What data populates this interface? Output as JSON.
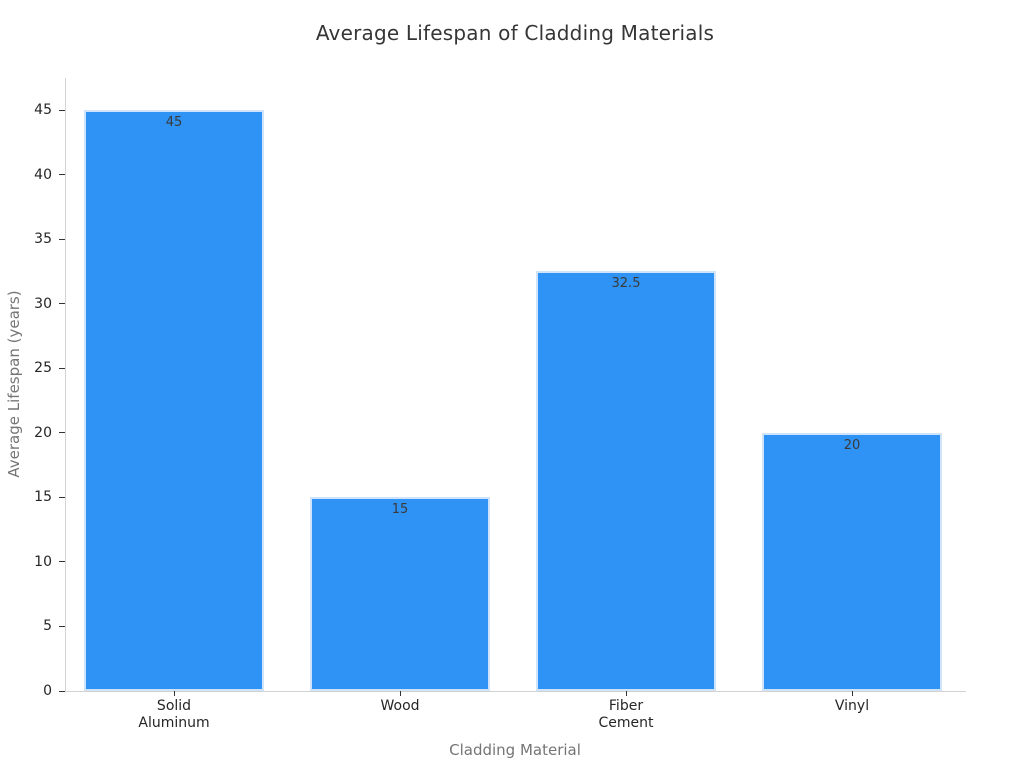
{
  "chart_data": {
    "type": "bar",
    "title": "Average Lifespan of Cladding Materials",
    "xlabel": "Cladding Material",
    "ylabel": "Average Lifespan (years)",
    "categories": [
      "Solid\nAluminum",
      "Wood",
      "Fiber\nCement",
      "Vinyl"
    ],
    "values": [
      45,
      15,
      32.5,
      20
    ],
    "value_labels": [
      "45",
      "15",
      "32.5",
      "20"
    ],
    "yticks": [
      0,
      5,
      10,
      15,
      20,
      25,
      30,
      35,
      40,
      45
    ],
    "ylim": [
      0,
      47.5
    ],
    "grid": false,
    "legend": null,
    "colors": {
      "bar_fill": "#2e93f5",
      "bar_edge": "#cfe4fb",
      "bar_value_label": "#3a3a3a",
      "tick_label": "#262626",
      "tick_mark": "#333333",
      "axis_title": "#757575",
      "chart_title": "#363636",
      "spine": "#d2d2d2",
      "background": "#ffffff"
    }
  }
}
